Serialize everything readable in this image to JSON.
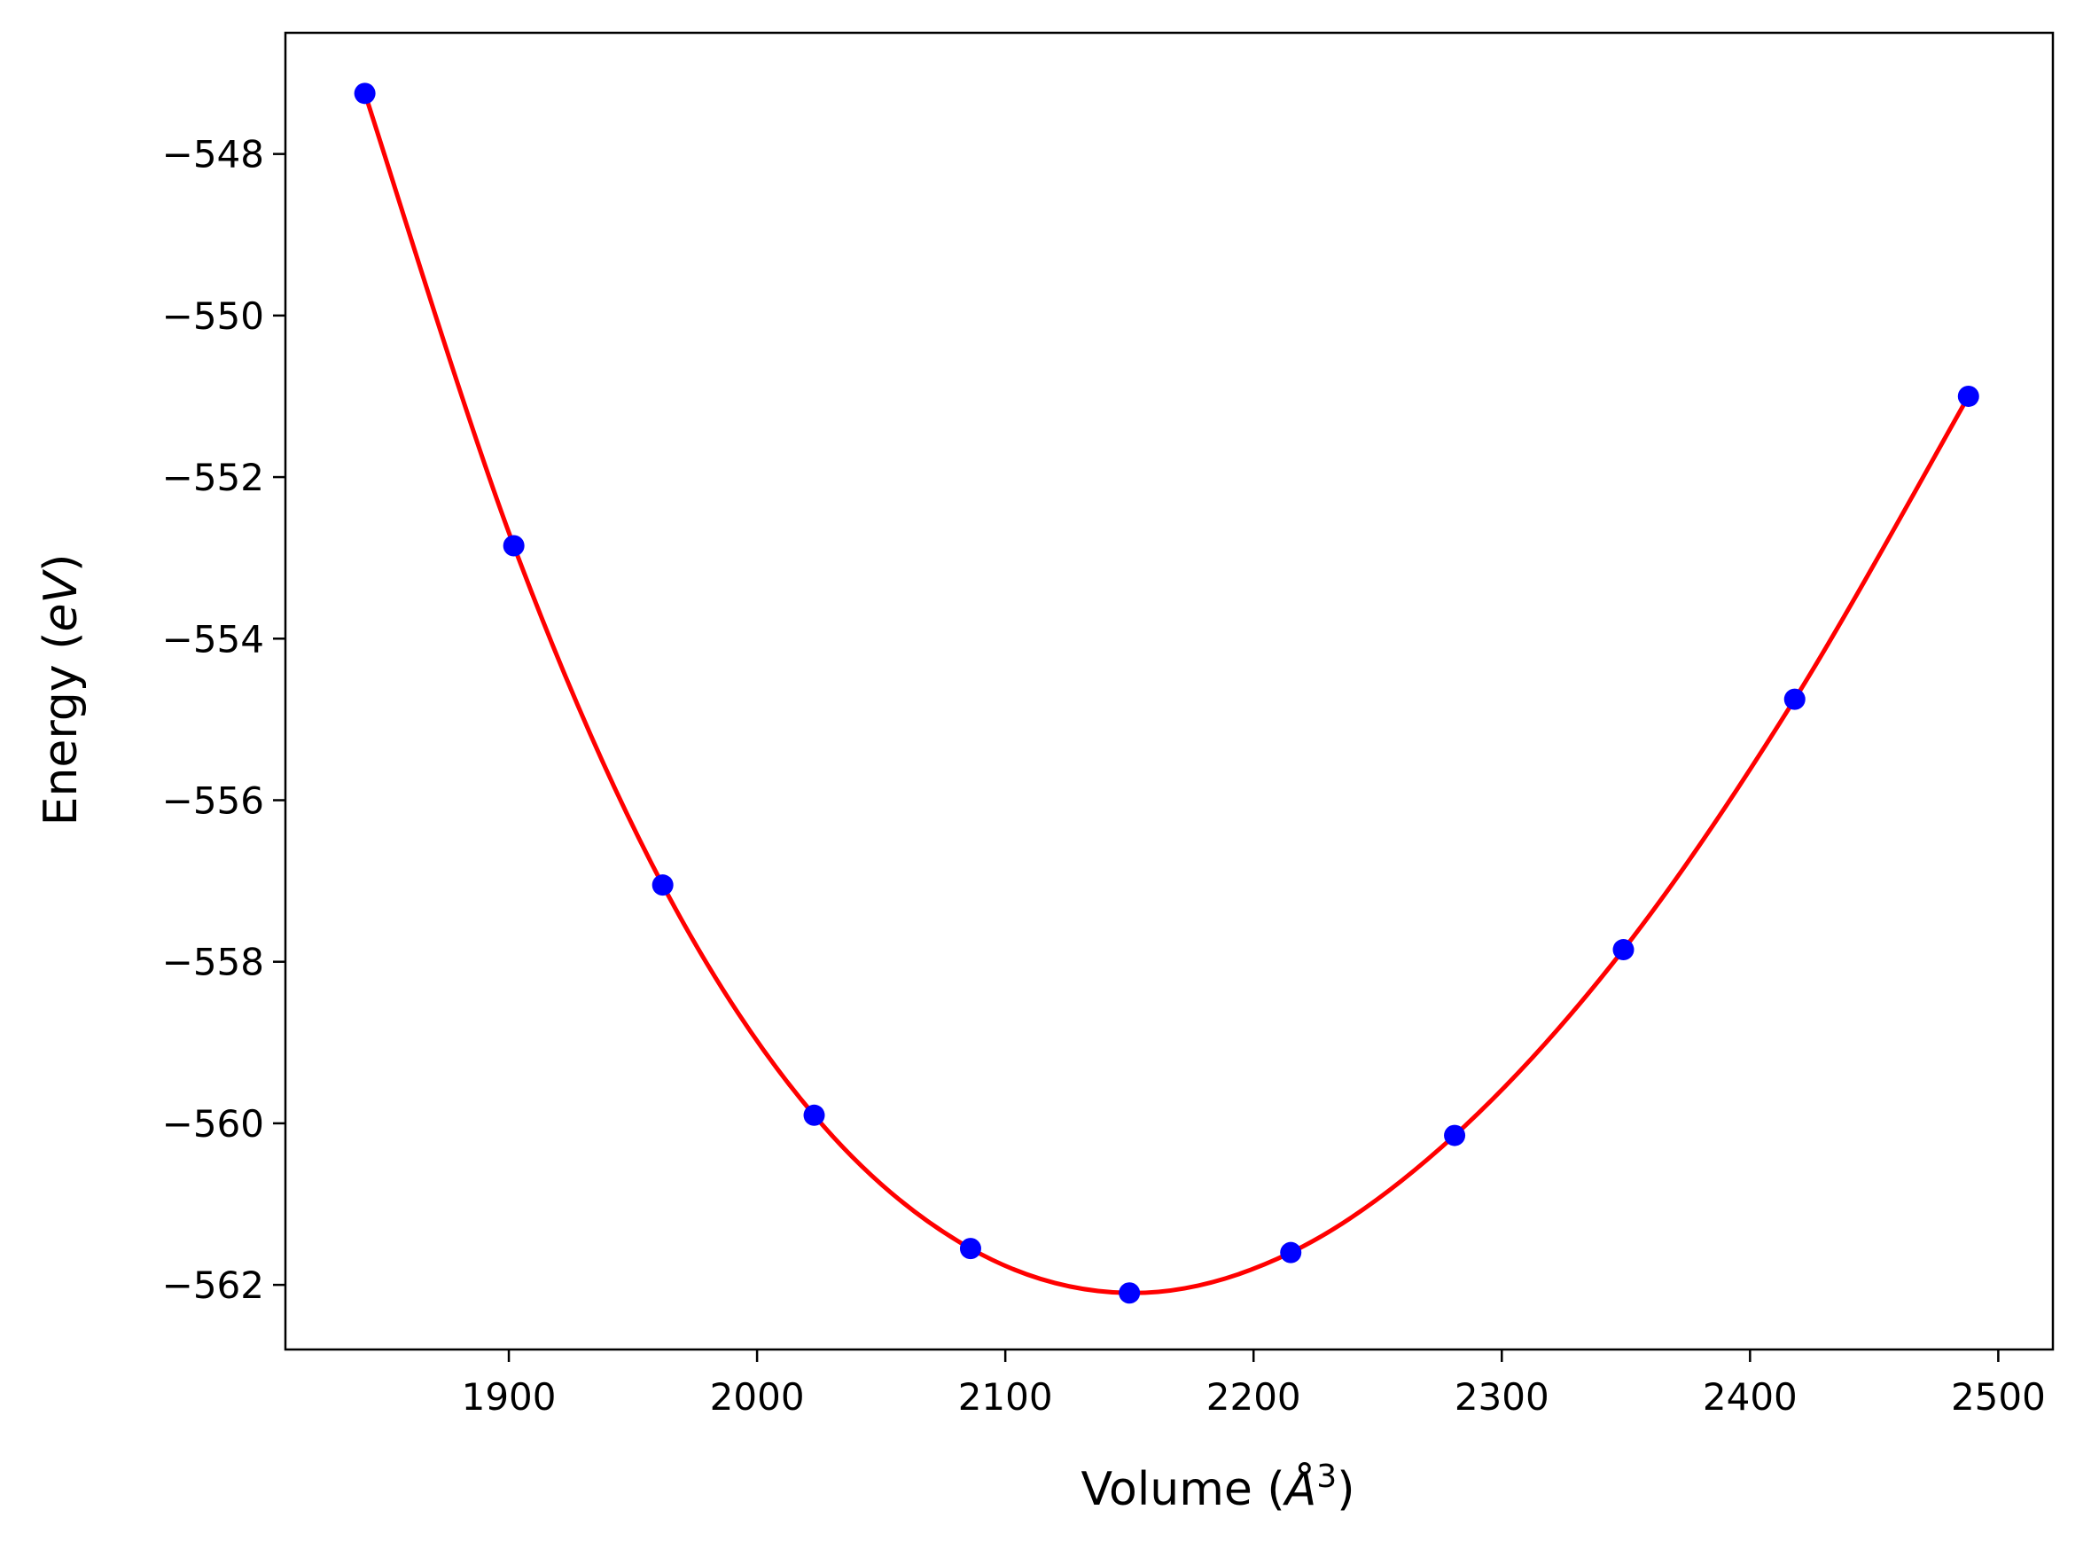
{
  "chart_data": {
    "type": "scatter",
    "xlabel": "Volume",
    "xlabel_unit_base": "Å",
    "xlabel_unit_exp": "3",
    "ylabel": "Energy",
    "ylabel_unit": "eV",
    "xlim": [
      1810,
      2522
    ],
    "ylim": [
      -562.8,
      -546.5
    ],
    "x_ticks": [
      1900,
      2000,
      2100,
      2200,
      2300,
      2400,
      2500
    ],
    "y_ticks": [
      -548,
      -550,
      -552,
      -554,
      -556,
      -558,
      -560,
      -562
    ],
    "x_tick_labels": [
      "1900",
      "2000",
      "2100",
      "2200",
      "2300",
      "2400",
      "2500"
    ],
    "y_tick_labels": [
      "−548",
      "−550",
      "−552",
      "−554",
      "−556",
      "−558",
      "−560",
      "−562"
    ],
    "grid": false,
    "series": [
      {
        "kind": "points",
        "color": "#0000ff",
        "x": [
          1842,
          1902,
          1962,
          2023,
          2086,
          2150,
          2215,
          2281,
          2349,
          2418,
          2488
        ],
        "y": [
          -547.25,
          -552.85,
          -557.05,
          -559.9,
          -561.55,
          -562.1,
          -561.6,
          -560.15,
          -557.85,
          -554.75,
          -551.0
        ]
      },
      {
        "kind": "fit-line",
        "color": "#ff0000",
        "x": [
          1842,
          1902,
          1962,
          2023,
          2086,
          2150,
          2215,
          2281,
          2349,
          2418,
          2488
        ],
        "y": [
          -547.25,
          -552.85,
          -557.05,
          -559.9,
          -561.55,
          -562.1,
          -561.6,
          -560.15,
          -557.85,
          -554.75,
          -551.0
        ]
      }
    ]
  }
}
